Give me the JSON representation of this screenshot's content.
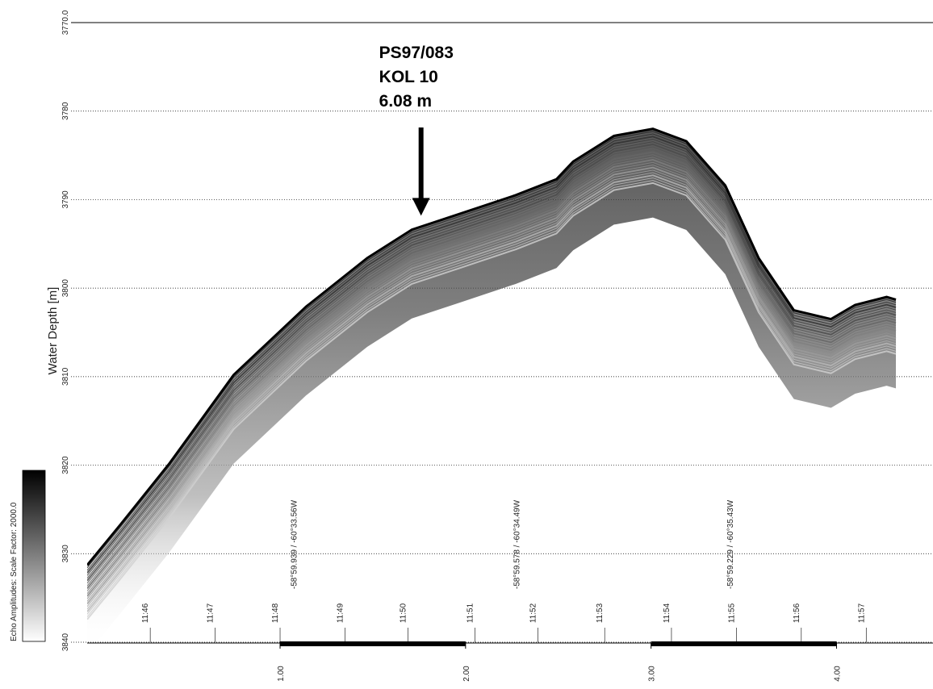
{
  "chart_data": {
    "type": "line",
    "ylabel": "Water Depth [m]",
    "y_inverted": true,
    "grid": true,
    "color": "#000000",
    "x": [
      -0.04,
      0.14,
      0.4,
      0.75,
      1.14,
      1.47,
      1.71,
      1.97,
      2.27,
      2.49,
      2.58,
      2.8,
      3.01,
      3.19,
      3.4,
      3.58,
      3.77,
      3.97,
      4.1,
      4.27,
      4.32
    ],
    "values": [
      3831.3,
      3826.7,
      3819.9,
      3809.8,
      3802.1,
      3796.6,
      3793.4,
      3791.6,
      3789.5,
      3787.7,
      3785.7,
      3782.8,
      3782.0,
      3783.4,
      3788.4,
      3796.6,
      3802.5,
      3803.5,
      3801.9,
      3801.0,
      3801.3
    ],
    "xlim": [
      -0.04,
      4.52
    ],
    "ylim": [
      3770,
      3840
    ],
    "xticks": [
      {
        "value": 1,
        "label": "1.00"
      },
      {
        "value": 2,
        "label": "2.00"
      },
      {
        "value": 3,
        "label": "3.00"
      },
      {
        "value": 4,
        "label": "4.00"
      }
    ],
    "yticks": [
      {
        "value": 3770,
        "label": "3770.0"
      },
      3780,
      3790,
      3800,
      3810,
      3820,
      3830,
      3840
    ],
    "time_marks": [
      {
        "label": "11:46",
        "x": 0.3
      },
      {
        "label": "11:47",
        "x": 0.65
      },
      {
        "label": "11:48",
        "x": 1.0
      },
      {
        "label": "11:49",
        "x": 1.35
      },
      {
        "label": "11:50",
        "x": 1.69
      },
      {
        "label": "11:51",
        "x": 2.05
      },
      {
        "label": "11:52",
        "x": 2.39
      },
      {
        "label": "11:53",
        "x": 2.75
      },
      {
        "label": "11:54",
        "x": 3.11
      },
      {
        "label": "11:55",
        "x": 3.46
      },
      {
        "label": "11:56",
        "x": 3.81
      },
      {
        "label": "11:57",
        "x": 4.16
      }
    ],
    "position_labels": [
      {
        "label": "-58°59.939 / -60°33.56W",
        "x": 1.09
      },
      {
        "label": "-58°59.578 / -60°34.49W",
        "x": 2.29
      },
      {
        "label": "-58°59.229 / -60°35.43W",
        "x": 3.44
      }
    ],
    "annotation": {
      "lines": [
        "PS97/083",
        "KOL 10",
        "6.08 m"
      ],
      "x": 1.76,
      "y": 3792
    },
    "colorbar": {
      "label": "Echo Amplitudes:  Scale Factor:  2000.0"
    }
  }
}
